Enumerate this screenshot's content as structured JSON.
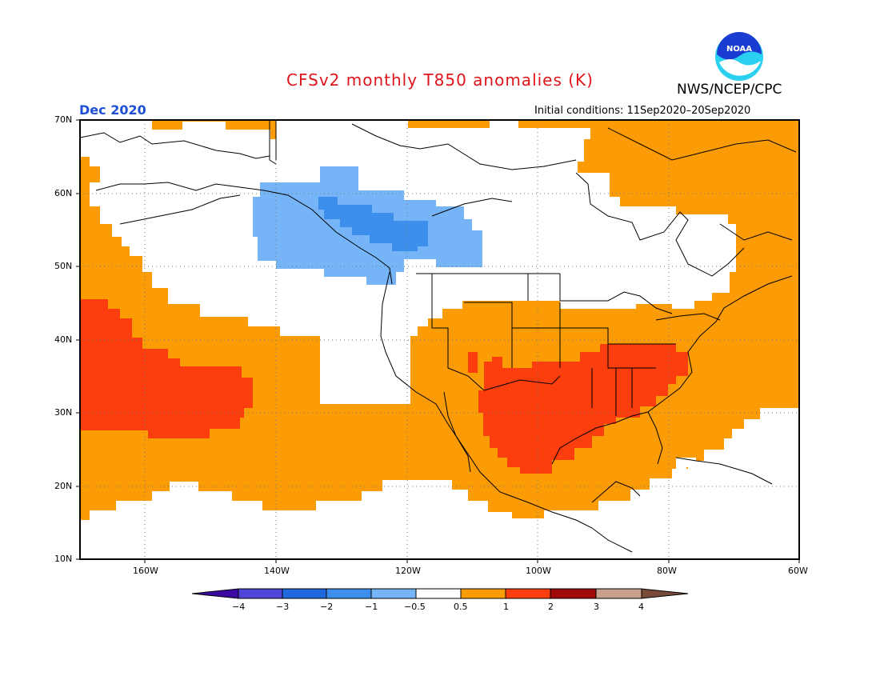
{
  "header": {
    "title": "CFSv2 monthly T850 anomalies (K)",
    "agency": "NWS/NCEP/CPC",
    "logo_text": "NOAA",
    "valid_month": "Dec 2020",
    "initial_conditions": "Initial conditions: 11Sep2020–20Sep2020"
  },
  "colors": {
    "title": "#e0151b",
    "valid_month": "#1f4fd4",
    "orange": "#fb9b05",
    "red": "#fc3d0e",
    "lightblue": "#75b4f6",
    "blue": "#3d8fed"
  },
  "map": {
    "lat_labels": [
      "70N",
      "60N",
      "50N",
      "40N",
      "30N",
      "20N",
      "10N"
    ],
    "lon_labels": [
      "160W",
      "140W",
      "120W",
      "100W",
      "80W",
      "60W"
    ],
    "lat_range": [
      10,
      70
    ],
    "lon_range": [
      -171,
      -60
    ],
    "grid": true
  },
  "colorbar": {
    "labels": [
      "−4",
      "−3",
      "−2",
      "−1",
      "−0.5",
      "0.5",
      "1",
      "2",
      "3",
      "4"
    ],
    "colors": [
      "#3c0aa0",
      "#5046d8",
      "#2068dd",
      "#3d8fed",
      "#75b4f6",
      "#ffffff",
      "#fb9b05",
      "#fc3d0e",
      "#a00a0a",
      "#c8a08c",
      "#784a3a"
    ]
  }
}
